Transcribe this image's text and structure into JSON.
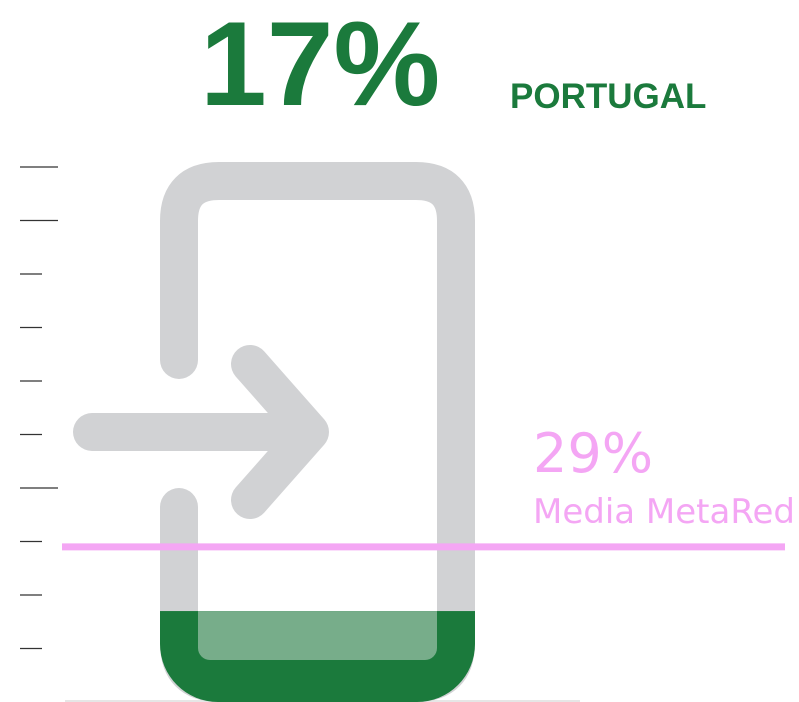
{
  "chart_data": {
    "type": "fill-gauge",
    "series": [
      {
        "name": "PORTUGAL",
        "values": [
          17
        ],
        "value_labels": [
          "17%"
        ],
        "color": "#1b7a3c"
      },
      {
        "name": "Media MetaRed",
        "values": [
          29
        ],
        "value_labels": [
          "29%"
        ],
        "color": "#f4a6f4"
      }
    ],
    "ylim": [
      0,
      100
    ],
    "yticks": [
      10,
      20,
      30,
      40,
      50,
      60,
      70,
      80,
      90,
      100
    ]
  }
}
